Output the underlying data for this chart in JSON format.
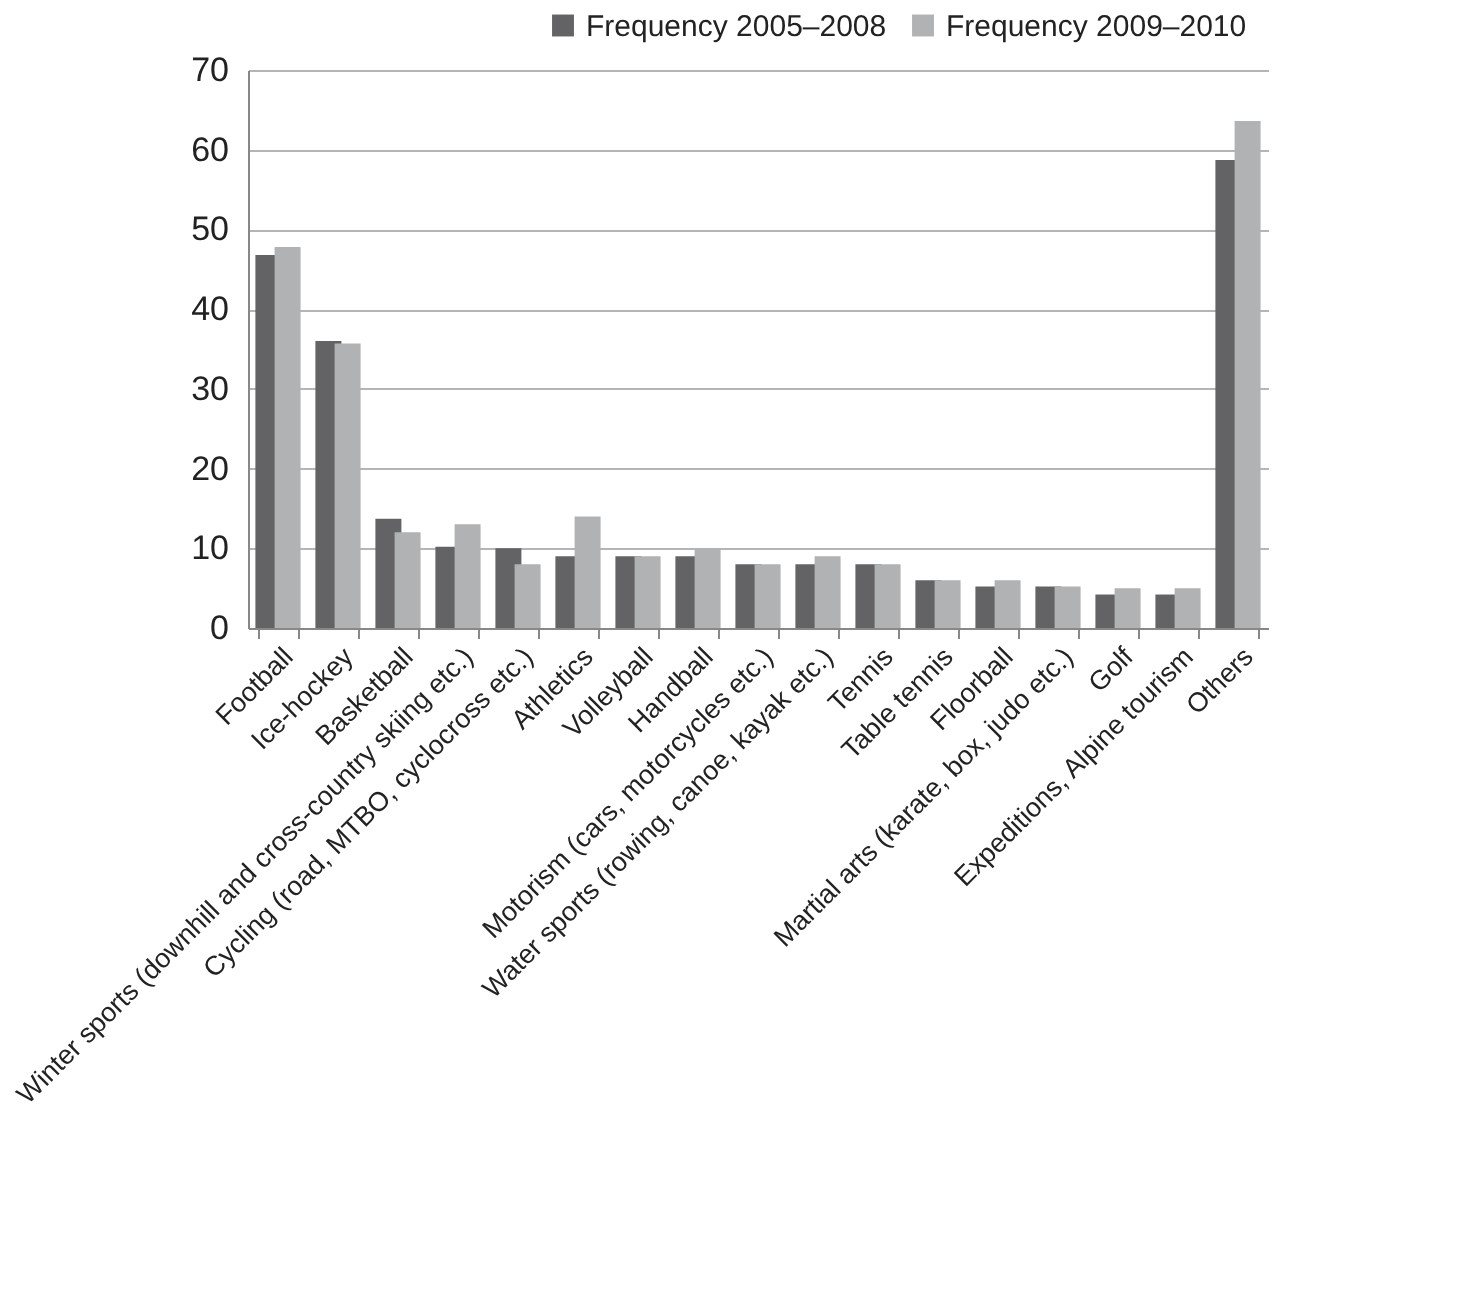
{
  "chart_data": {
    "type": "bar",
    "categories": [
      "Football",
      "Ice-hockey",
      "Basketball",
      "Winter sports (downhill and cross-country skiing etc.)",
      "Cycling (road, MTBO, cyclocross etc.)",
      "Athletics",
      "Volleyball",
      "Handball",
      "Motorism (cars, motorcycles etc.)",
      "Water sports (rowing, canoe, kayak etc.)",
      "Tennis",
      "Table tennis",
      "Floorball",
      "Martial arts (karate, box, judo etc.)",
      "Golf",
      "Expeditions, Alpine tourism",
      "Others"
    ],
    "series": [
      {
        "name": "Frequency 2005–2008",
        "color": "#636365",
        "values": [
          46.8,
          36,
          13.7,
          10.2,
          10,
          9,
          9,
          9,
          8,
          8,
          8,
          6,
          5.2,
          5.2,
          4.2,
          4.2,
          58.7
        ]
      },
      {
        "name": "Frequency 2009–2010",
        "color": "#b1b2b4",
        "values": [
          47.8,
          35.7,
          12,
          13,
          8,
          14,
          9,
          10,
          8,
          9,
          8,
          6,
          6,
          5.2,
          5,
          5,
          63.6
        ]
      }
    ],
    "ylim": [
      0,
      70
    ],
    "yticks": [
      0,
      10,
      20,
      30,
      40,
      50,
      60,
      70
    ],
    "grid": "y",
    "legend": "top right"
  }
}
